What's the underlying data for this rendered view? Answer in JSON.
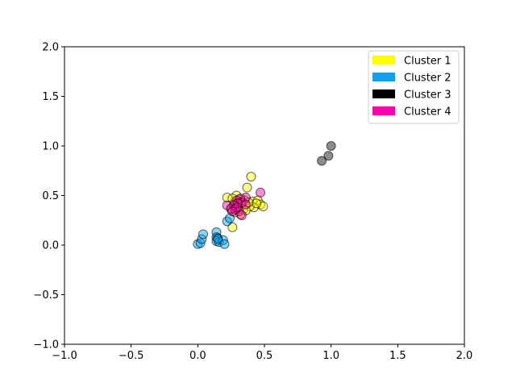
{
  "chart_data": {
    "type": "scatter",
    "title": "",
    "xlabel": "",
    "ylabel": "",
    "xlim": [
      -1.0,
      2.0
    ],
    "ylim": [
      -1.0,
      2.0
    ],
    "x_ticks": [
      "−1.0",
      "−0.5",
      "0.0",
      "0.5",
      "1.0",
      "1.5",
      "2.0"
    ],
    "x_tick_values": [
      -1.0,
      -0.5,
      0.0,
      0.5,
      1.0,
      1.5,
      2.0
    ],
    "y_ticks": [
      "−1.0",
      "−0.5",
      "0.0",
      "0.5",
      "1.0",
      "1.5",
      "2.0"
    ],
    "y_tick_values": [
      -1.0,
      -0.5,
      0.0,
      0.5,
      1.0,
      1.5,
      2.0
    ],
    "grid": false,
    "legend_position": "top-right",
    "series": [
      {
        "name": "Cluster 1",
        "color": "#ffff00",
        "points": [
          [
            0.4,
            0.69
          ],
          [
            0.37,
            0.58
          ],
          [
            0.29,
            0.5
          ],
          [
            0.22,
            0.48
          ],
          [
            0.26,
            0.47
          ],
          [
            0.31,
            0.46
          ],
          [
            0.35,
            0.45
          ],
          [
            0.41,
            0.44
          ],
          [
            0.45,
            0.45
          ],
          [
            0.47,
            0.41
          ],
          [
            0.49,
            0.39
          ],
          [
            0.42,
            0.38
          ],
          [
            0.39,
            0.39
          ],
          [
            0.33,
            0.4
          ],
          [
            0.3,
            0.43
          ],
          [
            0.34,
            0.36
          ],
          [
            0.36,
            0.35
          ],
          [
            0.28,
            0.33
          ],
          [
            0.32,
            0.31
          ],
          [
            0.26,
            0.18
          ],
          [
            0.44,
            0.42
          ],
          [
            0.38,
            0.43
          ],
          [
            0.27,
            0.41
          ],
          [
            0.25,
            0.36
          ],
          [
            0.3,
            0.38
          ]
        ]
      },
      {
        "name": "Cluster 2",
        "color": "#00a2f1",
        "points": [
          [
            0.0,
            0.01
          ],
          [
            0.02,
            0.02
          ],
          [
            0.03,
            0.06
          ],
          [
            0.04,
            0.11
          ],
          [
            0.14,
            0.13
          ],
          [
            0.14,
            0.08
          ],
          [
            0.15,
            0.07
          ],
          [
            0.14,
            0.04
          ],
          [
            0.16,
            0.03
          ],
          [
            0.19,
            0.05
          ],
          [
            0.2,
            0.01
          ],
          [
            0.22,
            0.24
          ],
          [
            0.24,
            0.27
          ],
          [
            0.15,
            0.06
          ]
        ]
      },
      {
        "name": "Cluster 3",
        "color": "#000000",
        "points": [
          [
            1.0,
            1.0
          ],
          [
            0.98,
            0.9
          ],
          [
            0.93,
            0.85
          ]
        ]
      },
      {
        "name": "Cluster 4",
        "color": "#ff00aa",
        "points": [
          [
            0.47,
            0.53
          ],
          [
            0.36,
            0.48
          ],
          [
            0.32,
            0.47
          ],
          [
            0.29,
            0.45
          ],
          [
            0.33,
            0.43
          ],
          [
            0.3,
            0.42
          ],
          [
            0.27,
            0.4
          ],
          [
            0.22,
            0.4
          ],
          [
            0.25,
            0.37
          ],
          [
            0.28,
            0.36
          ],
          [
            0.31,
            0.34
          ],
          [
            0.33,
            0.3
          ],
          [
            0.36,
            0.41
          ],
          [
            0.29,
            0.38
          ],
          [
            0.26,
            0.34
          ]
        ]
      }
    ]
  }
}
